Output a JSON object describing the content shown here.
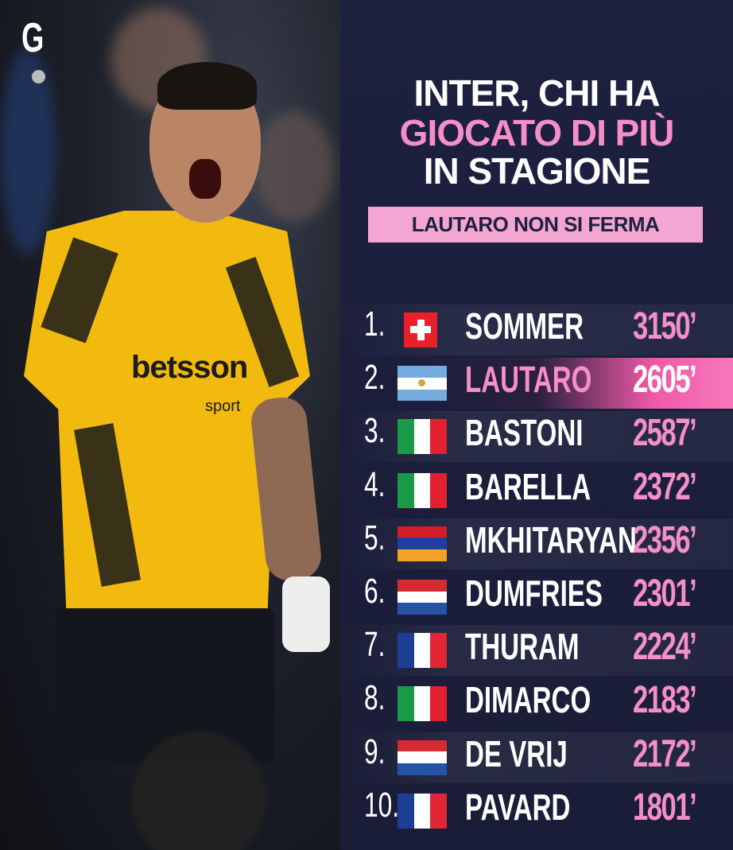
{
  "brand": {
    "logo_text": "G",
    "jersey_sponsor": "betsson",
    "jersey_sponsor_sub": "sport"
  },
  "title": {
    "line1": "INTER, CHI HA",
    "line2": "GIOCATO DI PIÙ",
    "line3": "IN STAGIONE"
  },
  "subtitle": "LAUTARO NON SI FERMA",
  "colors": {
    "accent_pink": "#f48fc8",
    "panel_bg": "#1d2140",
    "banner_bg": "#f4a6d3"
  },
  "rows": [
    {
      "rank": "1.",
      "flag": "switzerland",
      "name": "SOMMER",
      "minutes": "3150’"
    },
    {
      "rank": "2.",
      "flag": "argentina",
      "name": "LAUTARO",
      "minutes": "2605’",
      "highlighted": true
    },
    {
      "rank": "3.",
      "flag": "italy",
      "name": "BASTONI",
      "minutes": "2587’"
    },
    {
      "rank": "4.",
      "flag": "italy",
      "name": "BARELLA",
      "minutes": "2372’"
    },
    {
      "rank": "5.",
      "flag": "armenia",
      "name": "MKHITARYAN",
      "minutes": "2356’"
    },
    {
      "rank": "6.",
      "flag": "netherlands",
      "name": "DUMFRIES",
      "minutes": "2301’"
    },
    {
      "rank": "7.",
      "flag": "france",
      "name": "THURAM",
      "minutes": "2224’"
    },
    {
      "rank": "8.",
      "flag": "italy",
      "name": "DIMARCO",
      "minutes": "2183’"
    },
    {
      "rank": "9.",
      "flag": "netherlands",
      "name": "DE VRIJ",
      "minutes": "2172’"
    },
    {
      "rank": "10.",
      "flag": "france",
      "name": "PAVARD",
      "minutes": "1801’"
    }
  ]
}
